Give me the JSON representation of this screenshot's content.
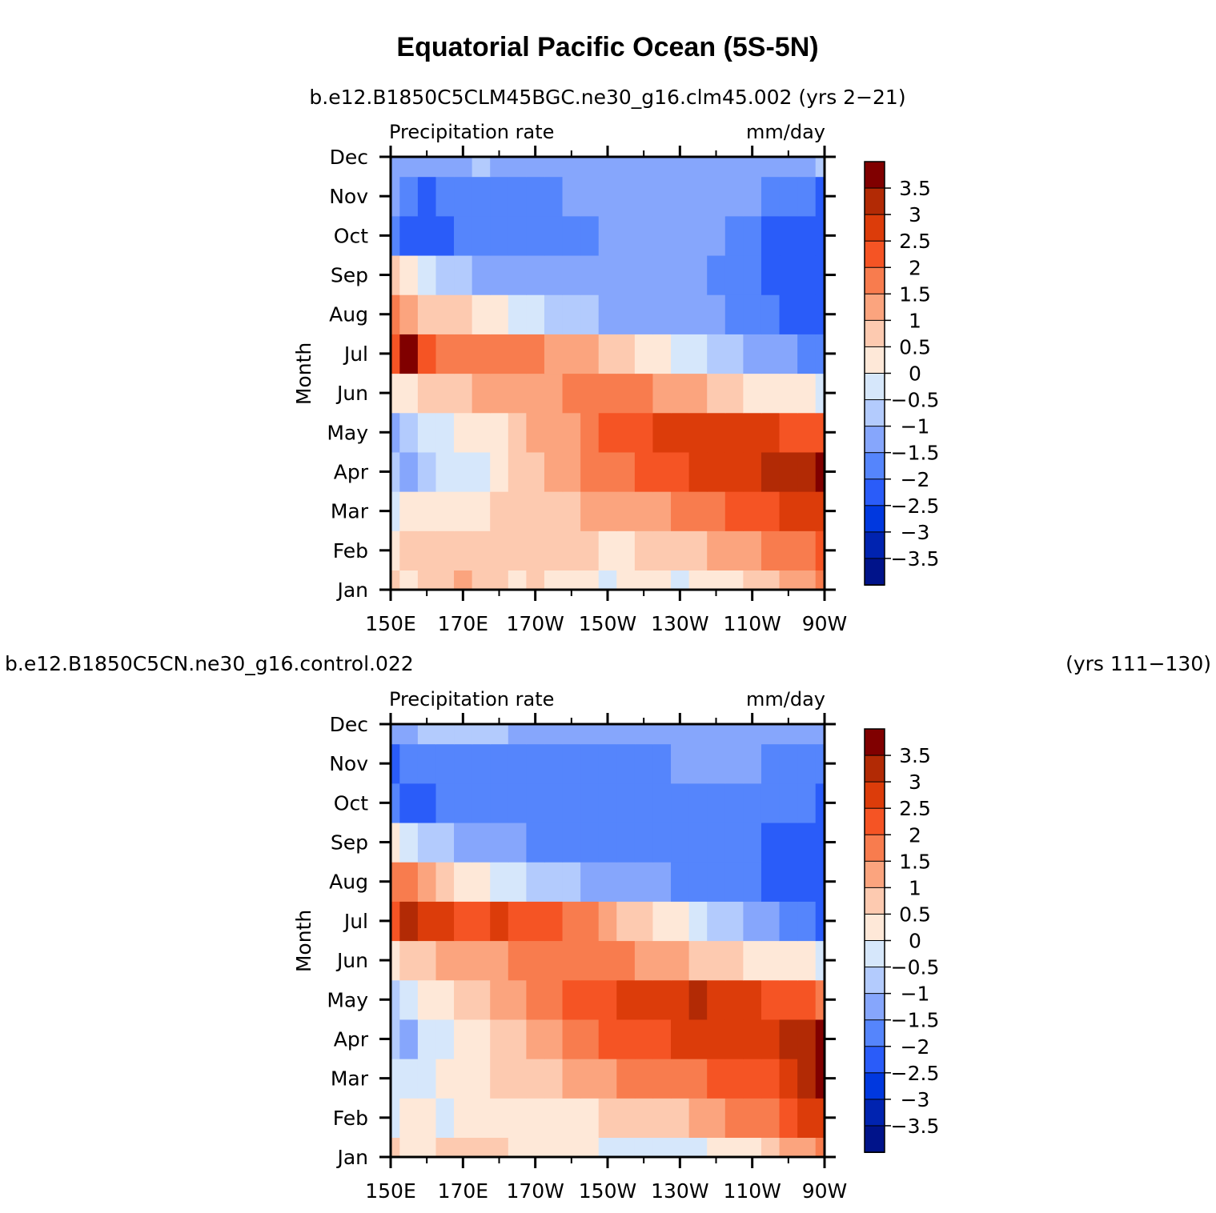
{
  "figure": {
    "title": "Equatorial Pacific Ocean (5S-5N)"
  },
  "chart_data": [
    {
      "type": "heatmap",
      "subtitle": "b.e12.B1850C5CLM45BGC.ne30_g16.clm45.002 (yrs 2-21)",
      "subtitle_right": "",
      "left_string": "Precipitation rate",
      "right_string": "mm/day",
      "ylabel": "Month",
      "x_ticks": [
        "150E",
        "170E",
        "170W",
        "150W",
        "130W",
        "110W",
        "90W"
      ],
      "x_tick_values": [
        150,
        170,
        190,
        210,
        230,
        250,
        270
      ],
      "y_ticks": [
        "Jan",
        "Feb",
        "Mar",
        "Apr",
        "May",
        "Jun",
        "Jul",
        "Aug",
        "Sep",
        "Oct",
        "Nov",
        "Dec"
      ],
      "xlim": [
        150,
        270
      ],
      "ylim": [
        1,
        12
      ],
      "colorbar_labels": [
        "3.5",
        "3",
        "2.5",
        "2",
        "1.5",
        "1",
        "0.5",
        "0",
        "-0.5",
        "-1",
        "-1.5",
        "-2",
        "-2.5",
        "-3",
        "-3.5"
      ],
      "colors": [
        "#800000",
        "#b22a05",
        "#dc3c0a",
        "#f55424",
        "#f87c4e",
        "#fba47e",
        "#fdcab0",
        "#fee8d8",
        "#d6e7fb",
        "#b3cbfd",
        "#86a6fc",
        "#5585fc",
        "#2a5cf9",
        "#0038df",
        "#0023b0",
        "#00138a"
      ],
      "x": [
        150,
        155,
        160,
        165,
        170,
        175,
        180,
        185,
        190,
        195,
        200,
        205,
        210,
        215,
        220,
        225,
        230,
        235,
        240,
        245,
        250,
        255,
        260,
        265,
        270
      ],
      "y": [
        "Jan",
        "Feb",
        "Mar",
        "Apr",
        "May",
        "Jun",
        "Jul",
        "Aug",
        "Sep",
        "Oct",
        "Nov",
        "Dec"
      ],
      "z": [
        [
          0.6,
          0.3,
          0.6,
          0.7,
          1.2,
          0.7,
          0.6,
          0.5,
          0.7,
          0.4,
          0.3,
          0.2,
          -0.2,
          0.1,
          0.2,
          0.2,
          -0.1,
          0.2,
          0.3,
          0.5,
          0.6,
          0.9,
          1.1,
          1.3,
          1.6
        ],
        [
          0.3,
          0.6,
          0.7,
          0.8,
          1.0,
          1.0,
          0.8,
          0.7,
          0.8,
          0.8,
          0.7,
          0.6,
          0.5,
          0.5,
          0.6,
          0.6,
          0.7,
          0.8,
          1.2,
          1.3,
          1.5,
          1.6,
          1.8,
          2.0,
          2.2
        ],
        [
          -0.4,
          0.2,
          0.2,
          0.3,
          0.4,
          0.4,
          0.6,
          0.7,
          0.8,
          0.9,
          1.0,
          1.1,
          1.2,
          1.3,
          1.4,
          1.5,
          1.6,
          1.8,
          2.0,
          2.1,
          2.2,
          2.3,
          2.6,
          2.8,
          3.0
        ],
        [
          -0.8,
          -1.0,
          -0.6,
          -0.4,
          -0.3,
          -0.1,
          0.2,
          0.6,
          0.9,
          1.1,
          1.4,
          1.6,
          1.8,
          2.0,
          2.1,
          2.3,
          2.5,
          2.6,
          2.7,
          2.8,
          2.9,
          3.1,
          3.4,
          3.5,
          3.6
        ],
        [
          -1.0,
          -0.6,
          -0.4,
          -0.2,
          0.1,
          0.3,
          0.5,
          0.8,
          1.1,
          1.3,
          1.5,
          1.8,
          2.1,
          2.3,
          2.5,
          2.7,
          2.9,
          3.0,
          2.9,
          2.8,
          2.7,
          2.6,
          2.5,
          2.4,
          2.3
        ],
        [
          0.1,
          0.4,
          0.6,
          0.8,
          1.0,
          1.1,
          1.2,
          1.3,
          1.4,
          1.5,
          1.6,
          1.7,
          1.7,
          1.7,
          1.6,
          1.5,
          1.3,
          1.1,
          0.9,
          0.7,
          0.5,
          0.3,
          0.2,
          0.1,
          0.0
        ],
        [
          2.4,
          3.7,
          2.5,
          1.9,
          2.0,
          1.7,
          1.8,
          1.8,
          1.7,
          1.5,
          1.3,
          1.1,
          0.8,
          0.6,
          0.4,
          0.2,
          0.0,
          -0.2,
          -0.5,
          -0.8,
          -1.0,
          -1.2,
          -1.3,
          -1.5,
          -1.6
        ],
        [
          2.0,
          1.4,
          1.0,
          0.8,
          0.6,
          0.4,
          0.2,
          0.0,
          -0.3,
          -0.6,
          -0.8,
          -0.9,
          -1.0,
          -1.1,
          -1.1,
          -1.2,
          -1.2,
          -1.3,
          -1.4,
          -1.6,
          -1.8,
          -1.9,
          -2.0,
          -2.0,
          -2.1
        ],
        [
          0.7,
          0.3,
          -0.1,
          -0.5,
          -0.8,
          -1.0,
          -1.1,
          -1.2,
          -1.2,
          -1.3,
          -1.3,
          -1.3,
          -1.3,
          -1.3,
          -1.4,
          -1.4,
          -1.4,
          -1.4,
          -1.5,
          -1.5,
          -1.7,
          -2.0,
          -2.1,
          -2.1,
          -2.2
        ],
        [
          -1.7,
          -2.2,
          -2.4,
          -2.1,
          -1.9,
          -1.8,
          -1.7,
          -1.7,
          -1.7,
          -1.6,
          -1.6,
          -1.5,
          -1.4,
          -1.4,
          -1.4,
          -1.4,
          -1.4,
          -1.4,
          -1.4,
          -1.6,
          -1.9,
          -2.0,
          -2.1,
          -2.1,
          -2.3
        ],
        [
          -1.1,
          -1.9,
          -2.0,
          -1.9,
          -1.8,
          -1.7,
          -1.6,
          -1.6,
          -1.8,
          -1.6,
          -1.3,
          -1.2,
          -1.1,
          -1.1,
          -1.1,
          -1.1,
          -1.1,
          -1.1,
          -1.2,
          -1.3,
          -1.4,
          -1.6,
          -1.8,
          -1.9,
          -2.1
        ],
        [
          -1.3,
          -1.4,
          -1.4,
          -1.3,
          -1.0,
          -0.8,
          -1.1,
          -1.2,
          -1.2,
          -1.2,
          -1.2,
          -1.2,
          -1.1,
          -1.1,
          -1.1,
          -1.1,
          -1.1,
          -1.1,
          -1.1,
          -1.1,
          -1.1,
          -1.1,
          -1.0,
          -1.0,
          -0.8
        ]
      ]
    },
    {
      "type": "heatmap",
      "subtitle": "b.e12.B1850C5CN.ne30_g16.control.022",
      "subtitle_right": "(yrs 111-130)",
      "left_string": "Precipitation rate",
      "right_string": "mm/day",
      "ylabel": "Month",
      "x_ticks": [
        "150E",
        "170E",
        "170W",
        "150W",
        "130W",
        "110W",
        "90W"
      ],
      "x_tick_values": [
        150,
        170,
        190,
        210,
        230,
        250,
        270
      ],
      "y_ticks": [
        "Jan",
        "Feb",
        "Mar",
        "Apr",
        "May",
        "Jun",
        "Jul",
        "Aug",
        "Sep",
        "Oct",
        "Nov",
        "Dec"
      ],
      "xlim": [
        150,
        270
      ],
      "ylim": [
        1,
        12
      ],
      "colorbar_labels": [
        "3.5",
        "3",
        "2.5",
        "2",
        "1.5",
        "1",
        "0.5",
        "0",
        "-0.5",
        "-1",
        "-1.5",
        "-2",
        "-2.5",
        "-3",
        "-3.5"
      ],
      "colors": [
        "#800000",
        "#b22a05",
        "#dc3c0a",
        "#f55424",
        "#f87c4e",
        "#fba47e",
        "#fdcab0",
        "#fee8d8",
        "#d6e7fb",
        "#b3cbfd",
        "#86a6fc",
        "#5585fc",
        "#2a5cf9",
        "#0038df",
        "#0023b0",
        "#00138a"
      ],
      "x": [
        150,
        155,
        160,
        165,
        170,
        175,
        180,
        185,
        190,
        195,
        200,
        205,
        210,
        215,
        220,
        225,
        230,
        235,
        240,
        245,
        250,
        255,
        260,
        265,
        270
      ],
      "y": [
        "Jan",
        "Feb",
        "Mar",
        "Apr",
        "May",
        "Jun",
        "Jul",
        "Aug",
        "Sep",
        "Oct",
        "Nov",
        "Dec"
      ],
      "z": [
        [
          0.6,
          0.4,
          0.5,
          0.6,
          0.7,
          0.8,
          0.6,
          0.5,
          0.5,
          0.4,
          0.3,
          0.2,
          -0.2,
          -0.3,
          -0.3,
          -0.2,
          -0.3,
          -0.2,
          0.1,
          0.3,
          0.5,
          0.8,
          1.1,
          1.4,
          1.7
        ],
        [
          -0.2,
          0.2,
          0.4,
          -0.3,
          0.2,
          0.3,
          0.4,
          0.3,
          0.3,
          0.4,
          0.5,
          0.5,
          0.6,
          0.7,
          0.8,
          0.9,
          1.0,
          1.2,
          1.4,
          1.6,
          1.8,
          2.0,
          2.3,
          2.6,
          2.9
        ],
        [
          -0.2,
          -0.2,
          -0.1,
          0.2,
          0.3,
          0.3,
          0.6,
          0.8,
          0.9,
          1.0,
          1.1,
          1.2,
          1.4,
          1.6,
          1.7,
          1.8,
          1.9,
          2.0,
          2.1,
          2.2,
          2.3,
          2.5,
          2.8,
          3.2,
          3.6
        ],
        [
          -0.8,
          -1.0,
          -0.3,
          -0.2,
          0.3,
          0.4,
          0.6,
          0.9,
          1.2,
          1.5,
          1.7,
          1.9,
          2.2,
          2.3,
          2.4,
          2.5,
          2.6,
          2.7,
          2.7,
          2.8,
          2.9,
          3.0,
          3.3,
          3.5,
          3.7
        ],
        [
          -0.5,
          -0.3,
          0.2,
          0.4,
          0.6,
          0.9,
          1.1,
          1.4,
          1.7,
          1.9,
          2.1,
          2.3,
          2.5,
          2.6,
          2.7,
          2.9,
          3.0,
          3.1,
          3.0,
          2.8,
          2.6,
          2.4,
          2.3,
          2.2,
          2.0
        ],
        [
          0.5,
          0.9,
          1.0,
          1.1,
          1.3,
          1.4,
          1.5,
          1.6,
          1.7,
          1.8,
          1.8,
          1.8,
          1.7,
          1.6,
          1.5,
          1.3,
          1.1,
          0.9,
          0.7,
          0.6,
          0.4,
          0.3,
          0.2,
          0.1,
          0.0
        ],
        [
          2.4,
          3.2,
          2.6,
          2.6,
          2.5,
          2.3,
          2.6,
          2.4,
          2.5,
          2.2,
          1.9,
          1.6,
          1.3,
          1.0,
          0.7,
          0.4,
          0.1,
          -0.2,
          -0.5,
          -0.8,
          -1.1,
          -1.4,
          -1.6,
          -1.8,
          -2.0
        ],
        [
          2.0,
          1.6,
          1.2,
          0.9,
          0.5,
          0.2,
          0.0,
          -0.3,
          -0.5,
          -0.7,
          -0.9,
          -1.0,
          -1.1,
          -1.2,
          -1.3,
          -1.4,
          -1.5,
          -1.6,
          -1.7,
          -1.8,
          -1.9,
          -2.0,
          -2.1,
          -2.1,
          -2.2
        ],
        [
          0.3,
          -0.3,
          -0.6,
          -0.8,
          -1.0,
          -1.2,
          -1.3,
          -1.4,
          -1.6,
          -1.8,
          -1.9,
          -1.9,
          -1.9,
          -1.9,
          -1.8,
          -1.8,
          -1.7,
          -1.6,
          -1.7,
          -1.8,
          -1.9,
          -2.0,
          -2.0,
          -2.1,
          -2.3
        ],
        [
          -1.7,
          -2.0,
          -2.0,
          -1.9,
          -1.8,
          -1.8,
          -1.8,
          -1.9,
          -1.9,
          -1.9,
          -1.9,
          -1.9,
          -1.9,
          -1.9,
          -1.8,
          -1.8,
          -1.8,
          -1.8,
          -1.8,
          -1.8,
          -1.8,
          -1.8,
          -1.8,
          -1.9,
          -2.2
        ],
        [
          -2.2,
          -1.8,
          -1.8,
          -1.7,
          -1.6,
          -1.5,
          -1.6,
          -1.6,
          -1.5,
          -1.5,
          -1.5,
          -1.5,
          -1.5,
          -1.5,
          -1.5,
          -1.6,
          -1.4,
          -1.4,
          -1.4,
          -1.4,
          -1.4,
          -1.5,
          -1.5,
          -1.6,
          -1.8
        ],
        [
          -1.1,
          -1.1,
          -0.9,
          -0.7,
          -0.7,
          -0.8,
          -0.9,
          -1.0,
          -1.1,
          -1.1,
          -1.1,
          -1.1,
          -1.1,
          -1.1,
          -1.1,
          -1.1,
          -1.1,
          -1.0,
          -1.0,
          -1.0,
          -1.0,
          -1.0,
          -1.0,
          -1.0,
          -1.0
        ]
      ]
    }
  ]
}
